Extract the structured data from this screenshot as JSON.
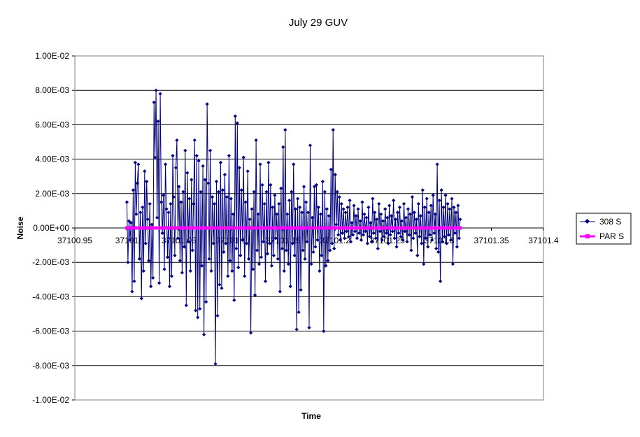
{
  "chart_data": {
    "type": "line",
    "title": "July 29 GUV",
    "xlabel": "Time",
    "ylabel": "Noise",
    "xlim": [
      37100.95,
      37101.4
    ],
    "ylim": [
      -0.01,
      0.01
    ],
    "x_tick_labels": [
      "37100.95",
      "37101",
      "37101.05",
      "37101.1",
      "37101.15",
      "37101.2",
      "37101.25",
      "37101.3",
      "37101.35",
      "37101.4"
    ],
    "y_tick_labels": [
      "-1.00E-02",
      "-8.00E-03",
      "-6.00E-03",
      "-4.00E-03",
      "-2.00E-03",
      "0.00E+00",
      "2.00E-03",
      "4.00E-03",
      "6.00E-03",
      "8.00E-03",
      "1.00E-02"
    ],
    "y_ticks": [
      -0.01,
      -0.008,
      -0.006,
      -0.004,
      -0.002,
      0,
      0.002,
      0.004,
      0.006,
      0.008,
      0.01
    ],
    "x_start": 37101.0,
    "x_step": 0.001,
    "grid": "horizontal",
    "legend_position": "right",
    "series": [
      {
        "name": "308 S",
        "color": "#000080",
        "marker": "diamond",
        "values": [
          0.0015,
          -0.002,
          0.0004,
          -0.0007,
          0.0003,
          -0.0037,
          0.0022,
          -0.0031,
          0.0038,
          0.0008,
          0.0026,
          0.0037,
          -0.0018,
          0.0009,
          -0.0041,
          0.0012,
          -0.0025,
          0.0033,
          -0.0009,
          0.0027,
          0.0005,
          -0.0019,
          0.0014,
          -0.0034,
          0.0002,
          -0.0029,
          0.0073,
          0.0041,
          0.008,
          0.0006,
          0.0062,
          -0.0032,
          0.0078,
          0.0015,
          -0.0003,
          0.0019,
          -0.0024,
          0.0037,
          0.0011,
          -0.0017,
          0.0009,
          -0.0034,
          0.0014,
          -0.0028,
          0.0042,
          0.0018,
          -0.0016,
          0.0035,
          0.0051,
          -0.0006,
          0.0024,
          -0.0019,
          0.0015,
          -0.0026,
          0.0021,
          -0.0011,
          0.0045,
          -0.0045,
          0.0032,
          -0.0008,
          0.0017,
          -0.0025,
          0.0028,
          -0.0013,
          0.0014,
          0.0051,
          -0.0048,
          0.0042,
          -0.0052,
          0.0039,
          -0.0047,
          0.0021,
          -0.0022,
          0.0036,
          -0.0062,
          0.0028,
          -0.0043,
          0.0072,
          0.0026,
          -0.0018,
          0.0045,
          -0.0025,
          0.0018,
          -0.0009,
          0.0014,
          -0.0079,
          0.0027,
          -0.0051,
          0.0021,
          -0.0033,
          0.0038,
          -0.0035,
          0.0022,
          -0.0014,
          0.0031,
          -0.0009,
          0.0018,
          -0.0028,
          0.0042,
          -0.0019,
          0.0017,
          -0.0025,
          0.0008,
          -0.0042,
          0.0065,
          -0.0012,
          0.0061,
          -0.0023,
          0.0035,
          -0.0016,
          0.0022,
          -0.0007,
          0.0041,
          -0.0028,
          0.0015,
          -0.0009,
          0.0033,
          -0.0018,
          0.0005,
          -0.0061,
          0.0011,
          -0.0024,
          0.0021,
          -0.0039,
          0.0051,
          -0.0013,
          0.0008,
          -0.0021,
          0.0037,
          -0.0017,
          0.0025,
          -0.0008,
          0.0014,
          -0.0031,
          0.0021,
          -0.0015,
          0.0038,
          -0.0009,
          0.0025,
          -0.0022,
          0.0012,
          -0.0016,
          0.0019,
          -0.0006,
          0.0008,
          -0.0018,
          0.0014,
          -0.0037,
          0.0023,
          -0.0012,
          0.0047,
          -0.0025,
          0.0057,
          -0.0013,
          0.0008,
          -0.0021,
          0.0016,
          -0.0034,
          0.0021,
          -0.0009,
          0.0037,
          -0.0016,
          0.0011,
          -0.0059,
          0.0017,
          -0.0049,
          0.0012,
          -0.0036,
          0.0009,
          -0.0013,
          0.0024,
          -0.0018,
          0.0015,
          -0.0008,
          0.0009,
          -0.0058,
          0.0048,
          -0.0021,
          0.0006,
          -0.0014,
          0.0024,
          -0.0011,
          0.0025,
          -0.0007,
          0.0012,
          -0.0025,
          0.0008,
          -0.0016,
          0.0027,
          -0.006,
          0.0021,
          -0.0022,
          0.0011,
          -0.0019,
          0.0007,
          -0.0013,
          0.0034,
          -0.0009,
          0.0057,
          -0.0012,
          0.0031,
          0.0002,
          0.0021,
          -0.0004,
          0.0018,
          -0.0007,
          0.0014,
          -0.0003,
          0.0011,
          -0.0006,
          0.0009,
          -0.0002,
          0.0012,
          -0.0005,
          0.0016,
          -0.0008,
          0.0003,
          -0.0004,
          0.0013,
          -0.0002,
          0.0007,
          -0.0006,
          0.0011,
          -0.0003,
          0.0004,
          -0.0007,
          0.0015,
          -0.0004,
          0.0008,
          -0.0002,
          0.0006,
          -0.0009,
          0.0012,
          -0.0005,
          0.0003,
          -0.0008,
          0.0017,
          -0.0003,
          0.0009,
          -0.0006,
          0.0005,
          -0.0012,
          0.0014,
          -0.0002,
          0.0008,
          -0.0007,
          0.0004,
          -0.0005,
          0.0011,
          -0.0003,
          0.0006,
          -0.0009,
          0.0013,
          -0.0004,
          0.0007,
          -0.0002,
          0.0016,
          -0.0006,
          0.0005,
          -0.0011,
          0.0009,
          -0.0003,
          0.0012,
          -0.0005,
          0.0004,
          -0.0007,
          0.0014,
          -0.0002,
          0.0006,
          -0.0008,
          0.0011,
          -0.0004,
          0.0008,
          -0.0013,
          0.0018,
          -0.0006,
          0.0009,
          -0.0003,
          0.0005,
          -0.0016,
          0.0014,
          -0.0005,
          0.0007,
          -0.0009,
          0.0022,
          -0.0021,
          0.0012,
          -0.0006,
          0.0017,
          -0.0011,
          0.0009,
          -0.0004,
          0.0013,
          -0.0007,
          0.0019,
          -0.0003,
          0.0008,
          -0.0012,
          0.0037,
          -0.0014,
          0.0016,
          -0.0031,
          0.0022,
          -0.0008,
          0.0012,
          -0.0005,
          0.0019,
          -0.0009,
          0.0014,
          -0.0004,
          0.0011,
          -0.0007,
          0.0017,
          -0.0021,
          0.0012,
          -0.0003,
          0.0009,
          -0.0011,
          0.0013,
          -0.0006,
          0.0005
        ]
      },
      {
        "name": "PAR S",
        "color": "#ff00ff",
        "marker": "square",
        "constant_value": 0
      }
    ]
  }
}
